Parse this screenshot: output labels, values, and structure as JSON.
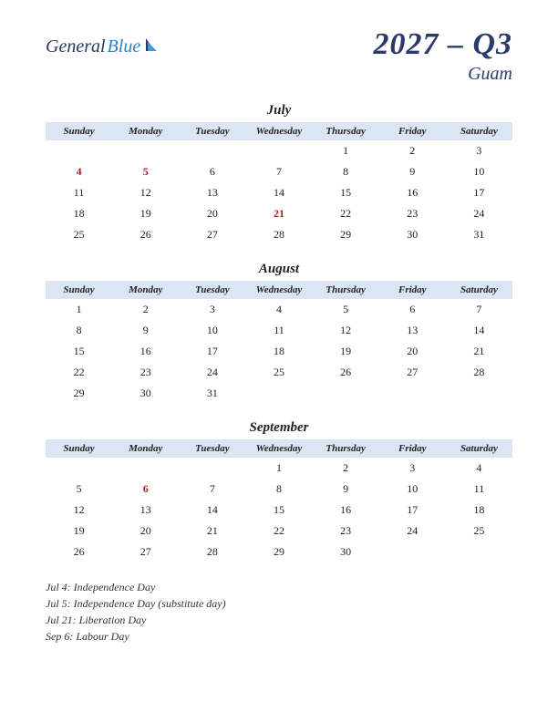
{
  "logo": {
    "part1": "General",
    "part2": "Blue"
  },
  "title": "2027 – Q3",
  "region": "Guam",
  "colors": {
    "header_bg": "#dbe5f4",
    "title_color": "#2a3a6a",
    "holiday_color": "#b02020",
    "logo_text1": "#2a3a5a",
    "logo_text2": "#3080c0",
    "background": "#ffffff"
  },
  "typography": {
    "title_fontsize": 34,
    "region_fontsize": 20,
    "month_fontsize": 15,
    "dayheader_fontsize": 11,
    "cell_fontsize": 12,
    "holiday_list_fontsize": 12
  },
  "day_headers": [
    "Sunday",
    "Monday",
    "Tuesday",
    "Wednesday",
    "Thursday",
    "Friday",
    "Saturday"
  ],
  "months": [
    {
      "name": "July",
      "weeks": [
        [
          {
            "d": ""
          },
          {
            "d": ""
          },
          {
            "d": ""
          },
          {
            "d": ""
          },
          {
            "d": "1"
          },
          {
            "d": "2"
          },
          {
            "d": "3"
          }
        ],
        [
          {
            "d": "4",
            "h": true
          },
          {
            "d": "5",
            "h": true
          },
          {
            "d": "6"
          },
          {
            "d": "7"
          },
          {
            "d": "8"
          },
          {
            "d": "9"
          },
          {
            "d": "10"
          }
        ],
        [
          {
            "d": "11"
          },
          {
            "d": "12"
          },
          {
            "d": "13"
          },
          {
            "d": "14"
          },
          {
            "d": "15"
          },
          {
            "d": "16"
          },
          {
            "d": "17"
          }
        ],
        [
          {
            "d": "18"
          },
          {
            "d": "19"
          },
          {
            "d": "20"
          },
          {
            "d": "21",
            "h": true
          },
          {
            "d": "22"
          },
          {
            "d": "23"
          },
          {
            "d": "24"
          }
        ],
        [
          {
            "d": "25"
          },
          {
            "d": "26"
          },
          {
            "d": "27"
          },
          {
            "d": "28"
          },
          {
            "d": "29"
          },
          {
            "d": "30"
          },
          {
            "d": "31"
          }
        ]
      ]
    },
    {
      "name": "August",
      "weeks": [
        [
          {
            "d": "1"
          },
          {
            "d": "2"
          },
          {
            "d": "3"
          },
          {
            "d": "4"
          },
          {
            "d": "5"
          },
          {
            "d": "6"
          },
          {
            "d": "7"
          }
        ],
        [
          {
            "d": "8"
          },
          {
            "d": "9"
          },
          {
            "d": "10"
          },
          {
            "d": "11"
          },
          {
            "d": "12"
          },
          {
            "d": "13"
          },
          {
            "d": "14"
          }
        ],
        [
          {
            "d": "15"
          },
          {
            "d": "16"
          },
          {
            "d": "17"
          },
          {
            "d": "18"
          },
          {
            "d": "19"
          },
          {
            "d": "20"
          },
          {
            "d": "21"
          }
        ],
        [
          {
            "d": "22"
          },
          {
            "d": "23"
          },
          {
            "d": "24"
          },
          {
            "d": "25"
          },
          {
            "d": "26"
          },
          {
            "d": "27"
          },
          {
            "d": "28"
          }
        ],
        [
          {
            "d": "29"
          },
          {
            "d": "30"
          },
          {
            "d": "31"
          },
          {
            "d": ""
          },
          {
            "d": ""
          },
          {
            "d": ""
          },
          {
            "d": ""
          }
        ]
      ]
    },
    {
      "name": "September",
      "weeks": [
        [
          {
            "d": ""
          },
          {
            "d": ""
          },
          {
            "d": ""
          },
          {
            "d": "1"
          },
          {
            "d": "2"
          },
          {
            "d": "3"
          },
          {
            "d": "4"
          }
        ],
        [
          {
            "d": "5"
          },
          {
            "d": "6",
            "h": true
          },
          {
            "d": "7"
          },
          {
            "d": "8"
          },
          {
            "d": "9"
          },
          {
            "d": "10"
          },
          {
            "d": "11"
          }
        ],
        [
          {
            "d": "12"
          },
          {
            "d": "13"
          },
          {
            "d": "14"
          },
          {
            "d": "15"
          },
          {
            "d": "16"
          },
          {
            "d": "17"
          },
          {
            "d": "18"
          }
        ],
        [
          {
            "d": "19"
          },
          {
            "d": "20"
          },
          {
            "d": "21"
          },
          {
            "d": "22"
          },
          {
            "d": "23"
          },
          {
            "d": "24"
          },
          {
            "d": "25"
          }
        ],
        [
          {
            "d": "26"
          },
          {
            "d": "27"
          },
          {
            "d": "28"
          },
          {
            "d": "29"
          },
          {
            "d": "30"
          },
          {
            "d": ""
          },
          {
            "d": ""
          }
        ]
      ]
    }
  ],
  "holiday_list": [
    "Jul 4: Independence Day",
    "Jul 5: Independence Day (substitute day)",
    "Jul 21: Liberation Day",
    "Sep 6: Labour Day"
  ]
}
